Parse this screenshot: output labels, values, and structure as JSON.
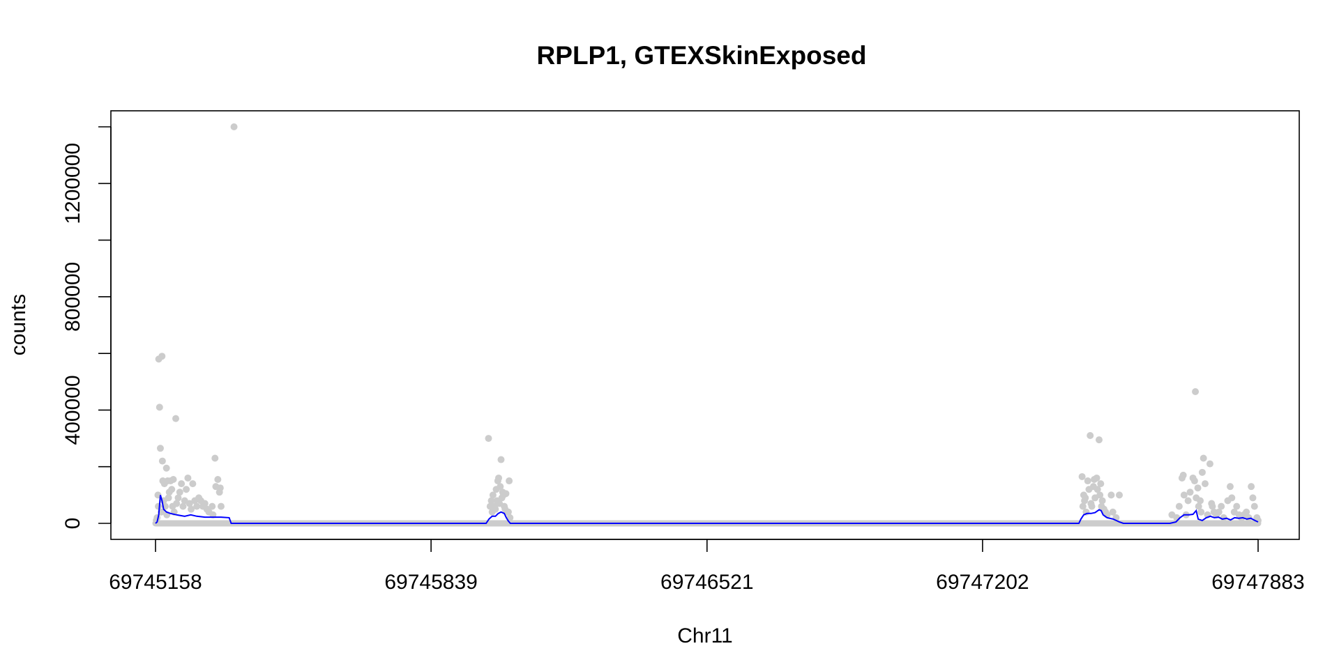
{
  "chart_data": {
    "type": "scatter",
    "title": "RPLP1, GTEXSkinExposed",
    "xlabel": "Chr11",
    "ylabel": "counts",
    "xlim": [
      69745158,
      69747883
    ],
    "ylim": [
      0,
      1400000
    ],
    "x_ticks": [
      69745158,
      69745839,
      69746521,
      69747202,
      69747883
    ],
    "x_tick_labels": [
      "69745158",
      "69745839",
      "69746521",
      "69747202",
      "69747883"
    ],
    "y_ticks": [
      0,
      200000,
      400000,
      600000,
      800000,
      1000000,
      1200000,
      1400000
    ],
    "y_tick_labels": [
      "0",
      "",
      "400000",
      "",
      "800000",
      "",
      "1200000",
      ""
    ],
    "grid": false,
    "colors": {
      "points": "#cccccc",
      "line": "#0000ff",
      "axis": "#000000"
    },
    "series": [
      {
        "type": "scatter",
        "points": [
          [
            69745160,
            10000
          ],
          [
            69745162,
            20000
          ],
          [
            69745164,
            100000
          ],
          [
            69745165,
            60000
          ],
          [
            69745166,
            580000
          ],
          [
            69745168,
            410000
          ],
          [
            69745170,
            265000
          ],
          [
            69745172,
            40000
          ],
          [
            69745174,
            590000
          ],
          [
            69745175,
            220000
          ],
          [
            69745176,
            150000
          ],
          [
            69745178,
            80000
          ],
          [
            69745180,
            140000
          ],
          [
            69745182,
            60000
          ],
          [
            69745185,
            195000
          ],
          [
            69745186,
            30000
          ],
          [
            69745188,
            150000
          ],
          [
            69745190,
            90000
          ],
          [
            69745192,
            110000
          ],
          [
            69745195,
            150000
          ],
          [
            69745198,
            120000
          ],
          [
            69745200,
            60000
          ],
          [
            69745202,
            155000
          ],
          [
            69745204,
            40000
          ],
          [
            69745208,
            370000
          ],
          [
            69745210,
            70000
          ],
          [
            69745214,
            90000
          ],
          [
            69745218,
            110000
          ],
          [
            69745222,
            140000
          ],
          [
            69745226,
            60000
          ],
          [
            69745230,
            80000
          ],
          [
            69745234,
            120000
          ],
          [
            69745238,
            160000
          ],
          [
            69745242,
            70000
          ],
          [
            69745246,
            50000
          ],
          [
            69745250,
            140000
          ],
          [
            69745255,
            80000
          ],
          [
            69745260,
            60000
          ],
          [
            69745265,
            90000
          ],
          [
            69745270,
            80000
          ],
          [
            69745275,
            60000
          ],
          [
            69745280,
            70000
          ],
          [
            69745285,
            50000
          ],
          [
            69745290,
            40000
          ],
          [
            69745298,
            60000
          ],
          [
            69745300,
            30000
          ],
          [
            69745305,
            230000
          ],
          [
            69745307,
            130000
          ],
          [
            69745312,
            155000
          ],
          [
            69745316,
            110000
          ],
          [
            69745318,
            125000
          ],
          [
            69745320,
            60000
          ],
          [
            69745352,
            1400000
          ],
          [
            69745981,
            300000
          ],
          [
            69745985,
            60000
          ],
          [
            69745988,
            80000
          ],
          [
            69745990,
            40000
          ],
          [
            69745992,
            100000
          ],
          [
            69745996,
            60000
          ],
          [
            69745998,
            50000
          ],
          [
            69746000,
            120000
          ],
          [
            69746002,
            80000
          ],
          [
            69746004,
            150000
          ],
          [
            69746006,
            160000
          ],
          [
            69746008,
            70000
          ],
          [
            69746010,
            130000
          ],
          [
            69746012,
            225000
          ],
          [
            69746014,
            90000
          ],
          [
            69746016,
            110000
          ],
          [
            69746018,
            100000
          ],
          [
            69746020,
            60000
          ],
          [
            69746022,
            50000
          ],
          [
            69746024,
            105000
          ],
          [
            69746026,
            40000
          ],
          [
            69746030,
            40000
          ],
          [
            69746032,
            150000
          ],
          [
            69746034,
            20000
          ],
          [
            69747448,
            165000
          ],
          [
            69747450,
            60000
          ],
          [
            69747452,
            100000
          ],
          [
            69747454,
            80000
          ],
          [
            69747456,
            90000
          ],
          [
            69747458,
            40000
          ],
          [
            69747462,
            150000
          ],
          [
            69747465,
            120000
          ],
          [
            69747468,
            310000
          ],
          [
            69747470,
            70000
          ],
          [
            69747472,
            60000
          ],
          [
            69747476,
            130000
          ],
          [
            69747478,
            155000
          ],
          [
            69747480,
            90000
          ],
          [
            69747484,
            160000
          ],
          [
            69747486,
            120000
          ],
          [
            69747490,
            295000
          ],
          [
            69747492,
            100000
          ],
          [
            69747494,
            140000
          ],
          [
            69747496,
            60000
          ],
          [
            69747498,
            80000
          ],
          [
            69747502,
            50000
          ],
          [
            69747506,
            40000
          ],
          [
            69747510,
            30000
          ],
          [
            69747520,
            100000
          ],
          [
            69747524,
            40000
          ],
          [
            69747532,
            20000
          ],
          [
            69747540,
            100000
          ],
          [
            69747670,
            30000
          ],
          [
            69747682,
            20000
          ],
          [
            69747688,
            60000
          ],
          [
            69747695,
            160000
          ],
          [
            69747698,
            170000
          ],
          [
            69747700,
            100000
          ],
          [
            69747705,
            30000
          ],
          [
            69747710,
            80000
          ],
          [
            69747715,
            110000
          ],
          [
            69747722,
            160000
          ],
          [
            69747726,
            150000
          ],
          [
            69747730,
            90000
          ],
          [
            69747734,
            125000
          ],
          [
            69747736,
            60000
          ],
          [
            69747740,
            80000
          ],
          [
            69747742,
            40000
          ],
          [
            69747745,
            180000
          ],
          [
            69747748,
            230000
          ],
          [
            69747752,
            140000
          ],
          [
            69747758,
            30000
          ],
          [
            69747764,
            210000
          ],
          [
            69747768,
            70000
          ],
          [
            69747770,
            60000
          ],
          [
            69747774,
            40000
          ],
          [
            69747780,
            30000
          ],
          [
            69747786,
            40000
          ],
          [
            69747792,
            60000
          ],
          [
            69747798,
            20000
          ],
          [
            69747808,
            80000
          ],
          [
            69747814,
            130000
          ],
          [
            69747818,
            90000
          ],
          [
            69747824,
            40000
          ],
          [
            69747830,
            60000
          ],
          [
            69747836,
            30000
          ],
          [
            69747842,
            20000
          ],
          [
            69747848,
            30000
          ],
          [
            69747854,
            40000
          ],
          [
            69747860,
            20000
          ],
          [
            69747866,
            130000
          ],
          [
            69747870,
            90000
          ],
          [
            69747874,
            60000
          ],
          [
            69747880,
            20000
          ],
          [
            69747883,
            10000
          ],
          [
            69747728,
            465000
          ]
        ]
      },
      {
        "type": "line",
        "points": [
          [
            69745158,
            0
          ],
          [
            69745162,
            5000
          ],
          [
            69745166,
            30000
          ],
          [
            69745170,
            100000
          ],
          [
            69745174,
            80000
          ],
          [
            69745178,
            50000
          ],
          [
            69745185,
            40000
          ],
          [
            69745195,
            35000
          ],
          [
            69745210,
            30000
          ],
          [
            69745230,
            25000
          ],
          [
            69745245,
            30000
          ],
          [
            69745260,
            25000
          ],
          [
            69745280,
            22000
          ],
          [
            69745300,
            22000
          ],
          [
            69745320,
            22000
          ],
          [
            69745340,
            20000
          ],
          [
            69745345,
            0
          ],
          [
            69745975,
            0
          ],
          [
            69745982,
            15000
          ],
          [
            69745990,
            25000
          ],
          [
            69745998,
            25000
          ],
          [
            69746005,
            35000
          ],
          [
            69746012,
            40000
          ],
          [
            69746020,
            35000
          ],
          [
            69746025,
            20000
          ],
          [
            69746030,
            8000
          ],
          [
            69746035,
            0
          ],
          [
            69747440,
            0
          ],
          [
            69747445,
            15000
          ],
          [
            69747452,
            30000
          ],
          [
            69747460,
            35000
          ],
          [
            69747470,
            35000
          ],
          [
            69747480,
            38000
          ],
          [
            69747490,
            48000
          ],
          [
            69747495,
            45000
          ],
          [
            69747500,
            30000
          ],
          [
            69747510,
            20000
          ],
          [
            69747525,
            15000
          ],
          [
            69747540,
            5000
          ],
          [
            69747550,
            0
          ],
          [
            69747665,
            0
          ],
          [
            69747680,
            5000
          ],
          [
            69747690,
            20000
          ],
          [
            69747700,
            30000
          ],
          [
            69747712,
            30000
          ],
          [
            69747722,
            32000
          ],
          [
            69747730,
            45000
          ],
          [
            69747735,
            15000
          ],
          [
            69747745,
            10000
          ],
          [
            69747755,
            20000
          ],
          [
            69747765,
            25000
          ],
          [
            69747775,
            20000
          ],
          [
            69747785,
            22000
          ],
          [
            69747795,
            15000
          ],
          [
            69747805,
            18000
          ],
          [
            69747815,
            12000
          ],
          [
            69747825,
            20000
          ],
          [
            69747835,
            18000
          ],
          [
            69747845,
            20000
          ],
          [
            69747855,
            15000
          ],
          [
            69747865,
            18000
          ],
          [
            69747875,
            10000
          ],
          [
            69747883,
            5000
          ]
        ]
      }
    ]
  }
}
